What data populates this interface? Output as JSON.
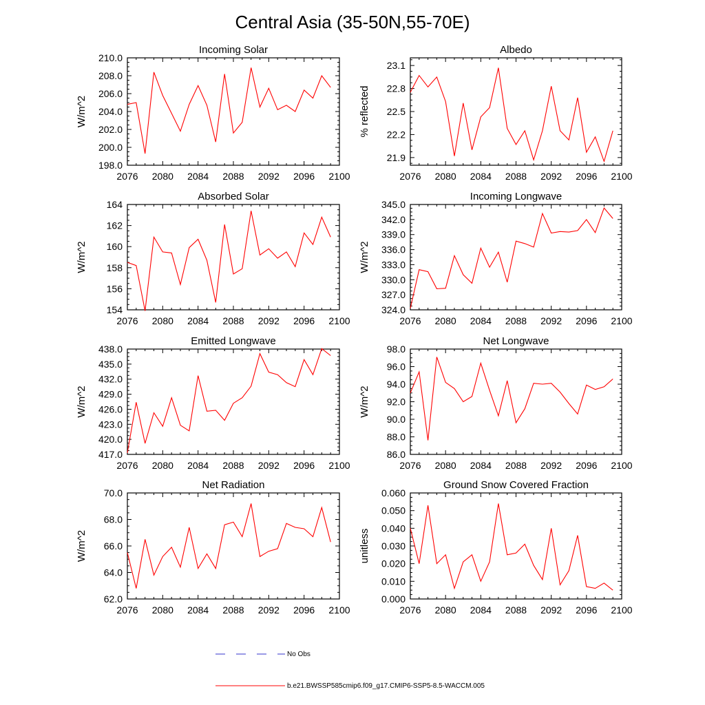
{
  "figure_title": "Central Asia (35-50N,55-70E)",
  "legend": {
    "obs_label": "No Obs",
    "obs_color": "#3333cc",
    "model_label": "b.e21.BWSSP585cmip6.f09_g17.CMIP6-SSP5-8.5-WACCM.005",
    "model_color": "#ff0000"
  },
  "chart_data": [
    {
      "type": "line",
      "title": "Incoming Solar",
      "ylabel": "W/m^2",
      "xlim": [
        2076,
        2100
      ],
      "ylim": [
        198.0,
        210.0
      ],
      "yticks": [
        "198.0",
        "200.0",
        "202.0",
        "204.0",
        "206.0",
        "208.0",
        "210.0"
      ],
      "xticks": [
        "2076",
        "2080",
        "2084",
        "2088",
        "2092",
        "2096",
        "2100"
      ],
      "x": [
        2076,
        2077,
        2078,
        2079,
        2080,
        2081,
        2082,
        2083,
        2084,
        2085,
        2086,
        2087,
        2088,
        2089,
        2090,
        2091,
        2092,
        2093,
        2094,
        2095,
        2096,
        2097,
        2098,
        2099
      ],
      "values": [
        204.8,
        205.0,
        199.3,
        208.4,
        205.8,
        203.8,
        201.8,
        204.8,
        206.9,
        204.7,
        200.6,
        208.2,
        201.6,
        202.8,
        208.9,
        204.5,
        206.6,
        204.2,
        204.7,
        204.0,
        206.4,
        205.5,
        208.0,
        206.7
      ]
    },
    {
      "type": "line",
      "title": "Albedo",
      "ylabel": "% reflected",
      "xlim": [
        2076,
        2100
      ],
      "ylim": [
        21.8,
        23.2
      ],
      "yticks": [
        "21.9",
        "22.2",
        "22.5",
        "22.8",
        "23.1"
      ],
      "xticks": [
        "2076",
        "2080",
        "2084",
        "2088",
        "2092",
        "2096",
        "2100"
      ],
      "x": [
        2076,
        2077,
        2078,
        2079,
        2080,
        2081,
        2082,
        2083,
        2084,
        2085,
        2086,
        2087,
        2088,
        2089,
        2090,
        2091,
        2092,
        2093,
        2094,
        2095,
        2096,
        2097,
        2098,
        2099
      ],
      "values": [
        22.75,
        22.97,
        22.82,
        22.95,
        22.63,
        21.92,
        22.61,
        22.0,
        22.43,
        22.55,
        23.07,
        22.28,
        22.07,
        22.25,
        21.87,
        22.25,
        22.83,
        22.25,
        22.13,
        22.68,
        21.97,
        22.17,
        21.85,
        22.25
      ]
    },
    {
      "type": "line",
      "title": "Absorbed Solar",
      "ylabel": "W/m^2",
      "xlim": [
        2076,
        2100
      ],
      "ylim": [
        154.0,
        164.0
      ],
      "yticks": [
        "154",
        "156",
        "158",
        "160",
        "162",
        "164"
      ],
      "xticks": [
        "2076",
        "2080",
        "2084",
        "2088",
        "2092",
        "2096",
        "2100"
      ],
      "x": [
        2076,
        2077,
        2078,
        2079,
        2080,
        2081,
        2082,
        2083,
        2084,
        2085,
        2086,
        2087,
        2088,
        2089,
        2090,
        2091,
        2092,
        2093,
        2094,
        2095,
        2096,
        2097,
        2098,
        2099
      ],
      "values": [
        158.5,
        158.2,
        153.9,
        160.9,
        159.5,
        159.4,
        156.4,
        159.9,
        160.7,
        158.7,
        154.7,
        162.1,
        157.4,
        157.9,
        163.4,
        159.2,
        159.8,
        158.9,
        159.5,
        158.1,
        161.3,
        160.2,
        162.8,
        160.9
      ]
    },
    {
      "type": "line",
      "title": "Incoming Longwave",
      "ylabel": "W/m^2",
      "xlim": [
        2076,
        2100
      ],
      "ylim": [
        324.0,
        345.0
      ],
      "yticks": [
        "324.0",
        "327.0",
        "330.0",
        "333.0",
        "336.0",
        "339.0",
        "342.0",
        "345.0"
      ],
      "xticks": [
        "2076",
        "2080",
        "2084",
        "2088",
        "2092",
        "2096",
        "2100"
      ],
      "x": [
        2076,
        2077,
        2078,
        2079,
        2080,
        2081,
        2082,
        2083,
        2084,
        2085,
        2086,
        2087,
        2088,
        2089,
        2090,
        2091,
        2092,
        2093,
        2094,
        2095,
        2096,
        2097,
        2098,
        2099
      ],
      "values": [
        324.3,
        332.0,
        331.6,
        328.2,
        328.3,
        334.8,
        331.0,
        329.3,
        336.3,
        332.5,
        335.5,
        329.5,
        337.7,
        337.2,
        336.5,
        343.2,
        339.3,
        339.6,
        339.5,
        339.8,
        342.0,
        339.4,
        344.3,
        342.2
      ]
    },
    {
      "type": "line",
      "title": "Emitted Longwave",
      "ylabel": "W/m^2",
      "xlim": [
        2076,
        2100
      ],
      "ylim": [
        417.0,
        438.0
      ],
      "yticks": [
        "417.0",
        "420.0",
        "423.0",
        "426.0",
        "429.0",
        "432.0",
        "435.0",
        "438.0"
      ],
      "xticks": [
        "2076",
        "2080",
        "2084",
        "2088",
        "2092",
        "2096",
        "2100"
      ],
      "x": [
        2076,
        2077,
        2078,
        2079,
        2080,
        2081,
        2082,
        2083,
        2084,
        2085,
        2086,
        2087,
        2088,
        2089,
        2090,
        2091,
        2092,
        2093,
        2094,
        2095,
        2096,
        2097,
        2098,
        2099
      ],
      "values": [
        417.3,
        427.4,
        419.2,
        425.3,
        422.6,
        428.3,
        422.8,
        421.7,
        432.7,
        425.6,
        425.8,
        423.8,
        427.2,
        428.3,
        430.6,
        437.1,
        433.4,
        432.9,
        431.3,
        430.5,
        435.9,
        432.9,
        438.1,
        436.7
      ]
    },
    {
      "type": "line",
      "title": "Net Longwave",
      "ylabel": "W/m^2",
      "xlim": [
        2076,
        2100
      ],
      "ylim": [
        86.0,
        98.0
      ],
      "yticks": [
        "86.0",
        "88.0",
        "90.0",
        "92.0",
        "94.0",
        "96.0",
        "98.0"
      ],
      "xticks": [
        "2076",
        "2080",
        "2084",
        "2088",
        "2092",
        "2096",
        "2100"
      ],
      "x": [
        2076,
        2077,
        2078,
        2079,
        2080,
        2081,
        2082,
        2083,
        2084,
        2085,
        2086,
        2087,
        2088,
        2089,
        2090,
        2091,
        2092,
        2093,
        2094,
        2095,
        2096,
        2097,
        2098,
        2099
      ],
      "values": [
        93.0,
        95.4,
        87.6,
        97.1,
        94.2,
        93.5,
        92.0,
        92.6,
        96.4,
        93.3,
        90.4,
        94.4,
        89.6,
        91.2,
        94.1,
        94.0,
        94.1,
        93.1,
        91.8,
        90.6,
        93.9,
        93.4,
        93.7,
        94.6
      ]
    },
    {
      "type": "line",
      "title": "Net Radiation",
      "ylabel": "W/m^2",
      "xlim": [
        2076,
        2100
      ],
      "ylim": [
        62.0,
        70.0
      ],
      "yticks": [
        "62.0",
        "64.0",
        "66.0",
        "68.0",
        "70.0"
      ],
      "xticks": [
        "2076",
        "2080",
        "2084",
        "2088",
        "2092",
        "2096",
        "2100"
      ],
      "x": [
        2076,
        2077,
        2078,
        2079,
        2080,
        2081,
        2082,
        2083,
        2084,
        2085,
        2086,
        2087,
        2088,
        2089,
        2090,
        2091,
        2092,
        2093,
        2094,
        2095,
        2096,
        2097,
        2098,
        2099
      ],
      "values": [
        65.5,
        62.8,
        66.5,
        63.8,
        65.2,
        65.9,
        64.4,
        67.4,
        64.3,
        65.4,
        64.3,
        67.6,
        67.8,
        66.7,
        69.2,
        65.2,
        65.6,
        65.8,
        67.7,
        67.4,
        67.3,
        66.7,
        68.9,
        66.3
      ]
    },
    {
      "type": "line",
      "title": "Ground Snow Covered Fraction",
      "ylabel": "unitless",
      "xlim": [
        2076,
        2100
      ],
      "ylim": [
        0.0,
        0.06
      ],
      "yticks": [
        "0.000",
        "0.010",
        "0.020",
        "0.030",
        "0.040",
        "0.050",
        "0.060"
      ],
      "xticks": [
        "2076",
        "2080",
        "2084",
        "2088",
        "2092",
        "2096",
        "2100"
      ],
      "x": [
        2076,
        2077,
        2078,
        2079,
        2080,
        2081,
        2082,
        2083,
        2084,
        2085,
        2086,
        2087,
        2088,
        2089,
        2090,
        2091,
        2092,
        2093,
        2094,
        2095,
        2096,
        2097,
        2098,
        2099
      ],
      "values": [
        0.04,
        0.02,
        0.053,
        0.02,
        0.025,
        0.006,
        0.021,
        0.025,
        0.01,
        0.021,
        0.054,
        0.025,
        0.026,
        0.031,
        0.019,
        0.011,
        0.04,
        0.008,
        0.016,
        0.036,
        0.007,
        0.006,
        0.009,
        0.005
      ]
    }
  ]
}
